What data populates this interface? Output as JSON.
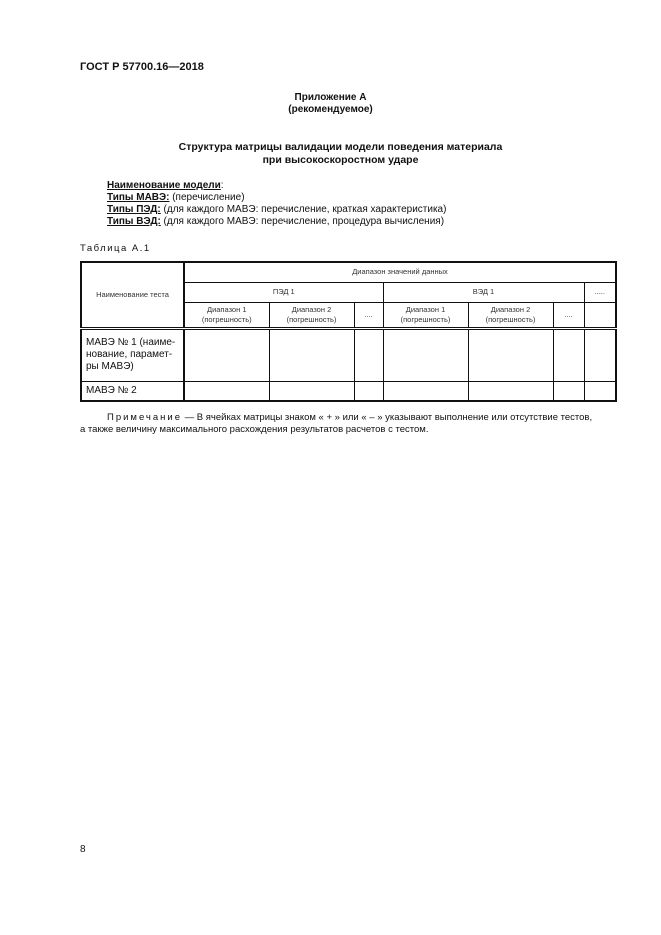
{
  "header": {
    "standard": "ГОСТ Р 57700.16—2018"
  },
  "appendix": {
    "title": "Приложение А",
    "subtitle": "(рекомендуемое)"
  },
  "heading": {
    "line1": "Структура матрицы валидации модели поведения материала",
    "line2": "при высокоскоростном ударе"
  },
  "model": {
    "name_label": "Наименование модели",
    "items": [
      {
        "label": "Типы МАВЭ:",
        "text": " (перечисление)"
      },
      {
        "label": "Типы ПЭД:",
        "text": " (для каждого МАВЭ: перечисление, краткая характеристика)"
      },
      {
        "label": "Типы ВЭД:",
        "text": " (для каждого МАВЭ: перечисление, процедура вычисления)"
      }
    ]
  },
  "table": {
    "caption": "Таблица А.1",
    "col_test": "Наименование теста",
    "range_header": "Диапазон значений данных",
    "ped": "ПЭД 1",
    "ved": "ВЭД 1",
    "more": ".....",
    "range1": "Диапазон 1",
    "range2": "Диапазон 2",
    "error": "(погрешность)",
    "dots": "....",
    "rows": [
      "МАВЭ № 1 (наиме-нование, парамет-ры МАВЭ)",
      "МАВЭ № 2"
    ]
  },
  "note": {
    "label": "Примечание",
    "text": " — В ячейках матрицы знаком « + » или « – » указывают выполнение или отсутствие тестов,",
    "line2": "а также величину максимального расхождения результатов расчетов с тестом."
  },
  "footer": {
    "page_number": "8"
  }
}
